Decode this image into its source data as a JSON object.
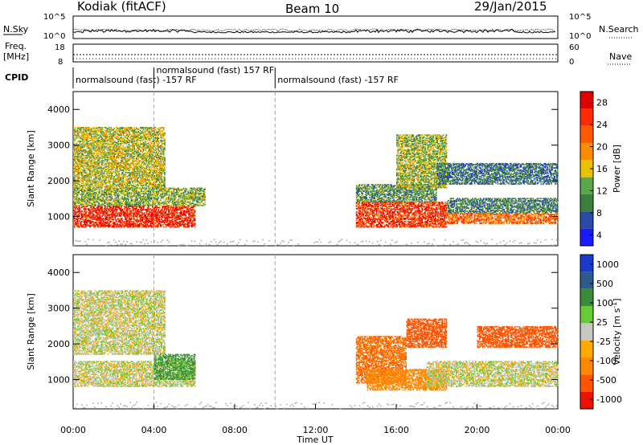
{
  "header": {
    "station": "Kodiak (fitACF)",
    "beam": "Beam 10",
    "date": "29/Jan/2015"
  },
  "top_panels": {
    "nsky_label": "N.Sky",
    "nsky_ticks": [
      "10^5",
      "10^0"
    ],
    "nsearch_label": "N.Search",
    "nsearch_ticks": [
      "10^5",
      "10^0"
    ],
    "freq_label_1": "Freq.",
    "freq_label_2": "[MHz]",
    "freq_ticks": [
      "18",
      "8"
    ],
    "nave_label": "Nave",
    "nave_ticks": [
      "60",
      "0"
    ],
    "cpid_label": "CPID",
    "cpid_segments": [
      {
        "label": "normalsound (fast) -157 RF",
        "start_hour": 0,
        "end_hour": 4
      },
      {
        "label": "normalsound (fast) 157 RF",
        "start_hour": 4,
        "end_hour": 10
      },
      {
        "label": "normalsound (fast) -157 RF",
        "start_hour": 10,
        "end_hour": 24
      }
    ]
  },
  "colors": {
    "power": [
      "#1a1aff",
      "#2a4aa8",
      "#3d7d3d",
      "#5aa84a",
      "#e8c400",
      "#ff8c00",
      "#ff5a00",
      "#ff2a00",
      "#e00000"
    ],
    "velocity": [
      "#1a3acc",
      "#2d5a8a",
      "#3c8a3c",
      "#66cc33",
      "#c8c8c0",
      "#ffaa00",
      "#ff8800",
      "#ff5500",
      "#ee1100"
    ],
    "ground": "#aaaaaa"
  },
  "power_scale": {
    "label": "Power [dB]",
    "ticks": [
      "28",
      "24",
      "20",
      "16",
      "12",
      "8",
      "4"
    ]
  },
  "velocity_scale": {
    "label": "Velocity [m s",
    "label_sup": "-1",
    "label_end": "]",
    "ticks": [
      "1000",
      "500",
      "100",
      "25",
      "-25",
      "-100",
      "-500",
      "-1000"
    ]
  },
  "axes": {
    "ylabel": "Slant Range [km]",
    "y_ticks": [
      "4000",
      "3000",
      "2000",
      "1000"
    ],
    "x_ticks": [
      "00:00",
      "04:00",
      "08:00",
      "12:00",
      "16:00",
      "20:00",
      "00:00"
    ],
    "xlabel": "Time UT"
  },
  "chart_data": [
    {
      "type": "heatmap",
      "title": "",
      "quantity": "Power",
      "units": "dB",
      "x_range_hours": [
        0,
        24
      ],
      "y_range_km": [
        180,
        4500
      ],
      "xlabel": "Time UT",
      "ylabel": "Slant Range [km]",
      "colorbar_ticks": [
        4,
        8,
        12,
        16,
        20,
        24,
        28
      ],
      "dashed_lines_hours": [
        4,
        10
      ],
      "regions": [
        {
          "t0": 0,
          "t1": 6.0,
          "r0": 700,
          "r1": 1300,
          "value": 26
        },
        {
          "t0": 0,
          "t1": 6.5,
          "r0": 1300,
          "r1": 1800,
          "value": 13
        },
        {
          "t0": 0,
          "t1": 4.5,
          "r0": 1800,
          "r1": 3500,
          "value": 15
        },
        {
          "t0": 14.0,
          "t1": 18.5,
          "r0": 700,
          "r1": 1400,
          "value": 25
        },
        {
          "t0": 14.0,
          "t1": 18.0,
          "r0": 1400,
          "r1": 1900,
          "value": 11
        },
        {
          "t0": 16.0,
          "t1": 18.5,
          "r0": 1800,
          "r1": 3300,
          "value": 14
        },
        {
          "t0": 18.5,
          "t1": 24.0,
          "r0": 800,
          "r1": 1100,
          "value": 22
        },
        {
          "t0": 18.5,
          "t1": 24.0,
          "r0": 1100,
          "r1": 1500,
          "value": 10
        },
        {
          "t0": 18.0,
          "t1": 24.0,
          "r0": 1900,
          "r1": 2500,
          "value": 9
        }
      ]
    },
    {
      "type": "heatmap",
      "title": "",
      "quantity": "Velocity",
      "units": "m s-1",
      "x_range_hours": [
        0,
        24
      ],
      "y_range_km": [
        180,
        4500
      ],
      "xlabel": "Time UT",
      "ylabel": "Slant Range [km]",
      "colorbar_ticks": [
        1000,
        500,
        100,
        25,
        -25,
        -100,
        -500,
        -1000
      ],
      "dashed_lines_hours": [
        4,
        10
      ],
      "regions": [
        {
          "t0": 0,
          "t1": 6.0,
          "r0": 800,
          "r1": 1500,
          "value": 0
        },
        {
          "t0": 4.0,
          "t1": 6.0,
          "r0": 1000,
          "r1": 1700,
          "value": 80
        },
        {
          "t0": 0,
          "t1": 4.5,
          "r0": 1700,
          "r1": 3500,
          "value": 0
        },
        {
          "t0": 14.0,
          "t1": 16.5,
          "r0": 900,
          "r1": 2200,
          "value": -300
        },
        {
          "t0": 14.5,
          "t1": 18.5,
          "r0": 700,
          "r1": 1300,
          "value": -150
        },
        {
          "t0": 16.5,
          "t1": 18.5,
          "r0": 1900,
          "r1": 2700,
          "value": -400
        },
        {
          "t0": 17.5,
          "t1": 24.0,
          "r0": 800,
          "r1": 1500,
          "value": 0
        },
        {
          "t0": 20.0,
          "t1": 24.0,
          "r0": 1900,
          "r1": 2500,
          "value": -400
        }
      ]
    }
  ]
}
